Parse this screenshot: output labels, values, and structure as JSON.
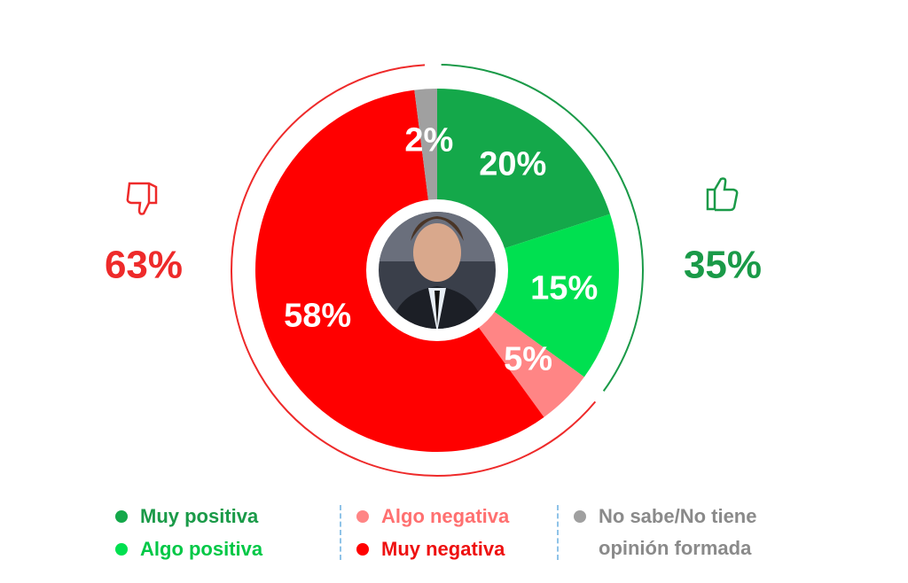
{
  "chart_data": {
    "type": "donut",
    "series": [
      {
        "name": "Muy positiva",
        "color": "#14a84a",
        "values": [
          20
        ],
        "value_labels": [
          "20%"
        ]
      },
      {
        "name": "Algo positiva",
        "color": "#00e050",
        "values": [
          15
        ],
        "value_labels": [
          "15%"
        ]
      },
      {
        "name": "Algo negativa",
        "color": "#ff8585",
        "values": [
          5
        ],
        "value_labels": [
          "5%"
        ]
      },
      {
        "name": "Muy negativa",
        "color": "#ff0000",
        "values": [
          58
        ],
        "value_labels": [
          "58%"
        ]
      },
      {
        "name": "No sabe/No tiene opinión formada",
        "color": "#a0a0a0",
        "values": [
          2
        ],
        "value_labels": [
          "2%"
        ]
      }
    ],
    "positive_total": {
      "value": 35,
      "label": "35%",
      "color": "#1a9a48"
    },
    "negative_total": {
      "value": 63,
      "label": "63%",
      "color": "#ee2a2a"
    }
  }
}
